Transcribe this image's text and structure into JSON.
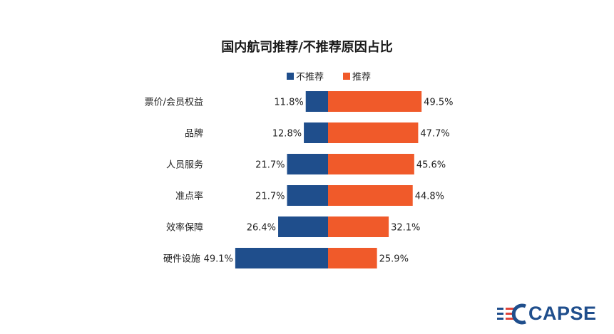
{
  "chart_data": {
    "type": "bar",
    "orientation": "horizontal-diverging",
    "title": "国内航司推荐/不推荐原因占比",
    "categories": [
      "票价/会员权益",
      "品牌",
      "人员服务",
      "准点率",
      "效率保障",
      "硬件设施"
    ],
    "series": [
      {
        "name": "不推荐",
        "color": "#1f4e8c",
        "values": [
          11.8,
          12.8,
          21.7,
          21.7,
          26.4,
          49.1
        ]
      },
      {
        "name": "推荐",
        "color": "#f05a2a",
        "values": [
          49.5,
          47.7,
          45.6,
          44.8,
          32.1,
          25.9
        ]
      }
    ],
    "value_format": "percent-1dp",
    "legend": "top-center",
    "grid": false
  },
  "brand": {
    "logo_text": "CAPSE",
    "logo_color": "#1f4e8c",
    "logo_accent": "#e0443a"
  }
}
